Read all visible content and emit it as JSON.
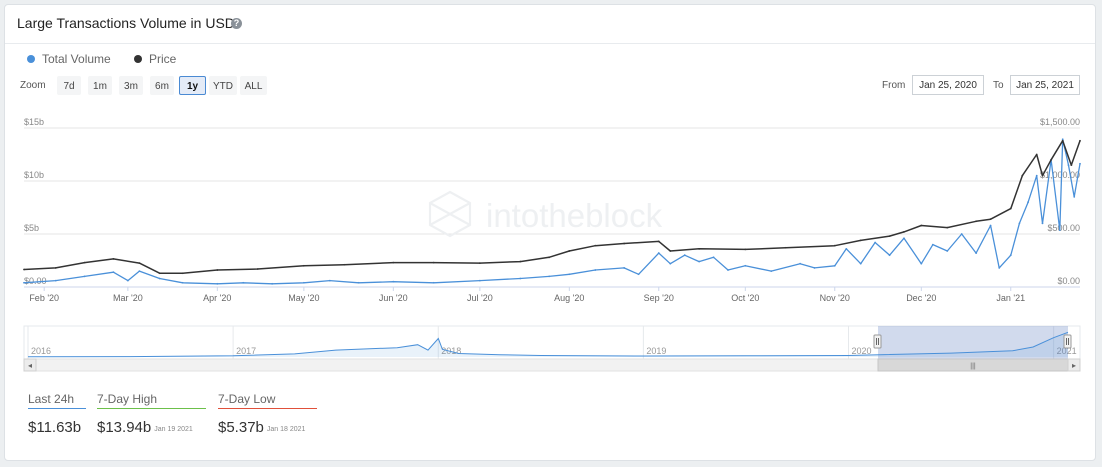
{
  "header": {
    "title": "Large Transactions Volume in USD",
    "help_icon": "?"
  },
  "legend": [
    {
      "label": "Total Volume",
      "color": "#4a90d9"
    },
    {
      "label": "Price",
      "color": "#333333"
    }
  ],
  "zoom": {
    "label": "Zoom",
    "buttons": [
      "7d",
      "1m",
      "3m",
      "6m",
      "1y",
      "YTD",
      "ALL"
    ],
    "active": "1y"
  },
  "range": {
    "from_label": "From",
    "from_value": "Jan 25, 2020",
    "to_label": "To",
    "to_value": "Jan 25, 2021"
  },
  "watermark": "intotheblock",
  "navigator": {
    "years": [
      "2016",
      "2017",
      "2018",
      "2019",
      "2020",
      "2021"
    ],
    "scroll_left": "◂",
    "scroll_right": "▸",
    "grip": "|||"
  },
  "stats": [
    {
      "label": "Last 24h",
      "value": "$11.63b",
      "date": "",
      "color": "#4a90d9"
    },
    {
      "label": "7-Day High",
      "value": "$13.94b",
      "date": "Jan 19 2021",
      "color": "#6cc04a"
    },
    {
      "label": "7-Day Low",
      "value": "$5.37b",
      "date": "Jan 18 2021",
      "color": "#e0503a"
    }
  ],
  "chart_data": {
    "type": "line",
    "x_ticks": [
      "Feb '20",
      "Mar '20",
      "Apr '20",
      "May '20",
      "Jun '20",
      "Jul '20",
      "Aug '20",
      "Sep '20",
      "Oct '20",
      "Nov '20",
      "Dec '20",
      "Jan '21"
    ],
    "left_axis": {
      "ticks": [
        "$0.00",
        "$5b",
        "$10b",
        "$15b"
      ],
      "range": [
        0,
        15
      ]
    },
    "right_axis": {
      "ticks": [
        "$0.00",
        "$500.00",
        "$1,000.00",
        "$1,500.00"
      ],
      "range": [
        0,
        1500
      ]
    },
    "series": [
      {
        "name": "Total Volume",
        "axis": "left",
        "color": "#4a90d9",
        "x": [
          "2020-01-25",
          "2020-02-05",
          "2020-02-15",
          "2020-02-25",
          "2020-03-01",
          "2020-03-05",
          "2020-03-12",
          "2020-03-20",
          "2020-04-01",
          "2020-04-10",
          "2020-04-20",
          "2020-05-01",
          "2020-05-10",
          "2020-05-20",
          "2020-06-01",
          "2020-06-15",
          "2020-07-01",
          "2020-07-15",
          "2020-07-25",
          "2020-08-01",
          "2020-08-10",
          "2020-08-20",
          "2020-08-25",
          "2020-09-01",
          "2020-09-05",
          "2020-09-10",
          "2020-09-15",
          "2020-09-20",
          "2020-09-25",
          "2020-10-01",
          "2020-10-10",
          "2020-10-20",
          "2020-10-25",
          "2020-11-01",
          "2020-11-05",
          "2020-11-10",
          "2020-11-15",
          "2020-11-20",
          "2020-11-25",
          "2020-12-01",
          "2020-12-05",
          "2020-12-10",
          "2020-12-15",
          "2020-12-20",
          "2020-12-25",
          "2020-12-28",
          "2021-01-01",
          "2021-01-04",
          "2021-01-07",
          "2021-01-10",
          "2021-01-12",
          "2021-01-15",
          "2021-01-18",
          "2021-01-19",
          "2021-01-21",
          "2021-01-23",
          "2021-01-25"
        ],
        "values": [
          0.4,
          0.6,
          1.0,
          1.4,
          0.6,
          1.5,
          0.8,
          0.4,
          0.3,
          0.4,
          0.3,
          0.4,
          0.6,
          0.4,
          0.5,
          0.4,
          0.6,
          0.8,
          1.0,
          1.2,
          1.6,
          1.8,
          1.2,
          3.2,
          2.2,
          3.0,
          2.4,
          2.8,
          1.6,
          2.0,
          1.5,
          2.2,
          1.8,
          2.0,
          3.6,
          2.2,
          4.2,
          3.0,
          4.6,
          2.2,
          4.0,
          3.4,
          5.0,
          3.2,
          5.8,
          1.8,
          3.0,
          6.0,
          8.0,
          10.5,
          6.0,
          12.0,
          5.37,
          13.94,
          11.5,
          8.5,
          11.63
        ]
      },
      {
        "name": "Price",
        "axis": "right",
        "color": "#333333",
        "x": [
          "2020-01-25",
          "2020-02-05",
          "2020-02-15",
          "2020-02-25",
          "2020-03-05",
          "2020-03-12",
          "2020-03-20",
          "2020-04-01",
          "2020-04-15",
          "2020-05-01",
          "2020-05-15",
          "2020-06-01",
          "2020-06-15",
          "2020-07-01",
          "2020-07-15",
          "2020-07-25",
          "2020-08-01",
          "2020-08-10",
          "2020-08-20",
          "2020-09-01",
          "2020-09-05",
          "2020-09-15",
          "2020-10-01",
          "2020-10-15",
          "2020-11-01",
          "2020-11-10",
          "2020-11-20",
          "2020-11-25",
          "2020-12-01",
          "2020-12-10",
          "2020-12-20",
          "2020-12-25",
          "2021-01-01",
          "2021-01-05",
          "2021-01-10",
          "2021-01-12",
          "2021-01-15",
          "2021-01-19",
          "2021-01-22",
          "2021-01-25"
        ],
        "values": [
          165,
          180,
          230,
          265,
          225,
          130,
          130,
          160,
          170,
          200,
          210,
          230,
          230,
          225,
          240,
          280,
          340,
          390,
          410,
          430,
          340,
          360,
          355,
          370,
          390,
          440,
          480,
          520,
          580,
          560,
          620,
          640,
          740,
          1050,
          1250,
          1050,
          1200,
          1380,
          1150,
          1380
        ]
      }
    ],
    "navigator_series": {
      "x": [
        2016.0,
        2016.5,
        2017.0,
        2017.3,
        2017.5,
        2017.8,
        2017.9,
        2017.95,
        2018.0,
        2018.02,
        2018.1,
        2018.3,
        2018.5,
        2019.0,
        2019.5,
        2020.0,
        2020.5,
        2020.8,
        2020.9,
        2021.0,
        2021.07
      ],
      "values": [
        0.05,
        0.1,
        0.3,
        0.8,
        1.8,
        2.4,
        3.2,
        1.8,
        4.8,
        2.0,
        0.9,
        0.6,
        0.4,
        0.25,
        0.3,
        0.4,
        1.0,
        1.6,
        2.6,
        5.0,
        6.4
      ]
    },
    "grid": true
  }
}
